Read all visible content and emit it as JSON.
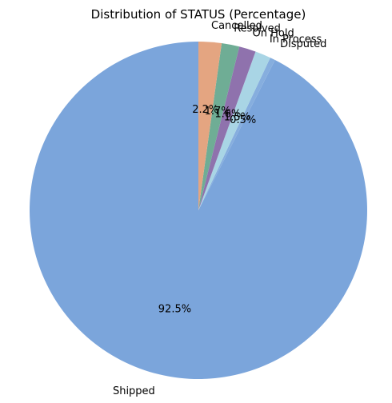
{
  "chart_data": {
    "type": "pie",
    "title": "Distribution of STATUS (Percentage)",
    "start_angle_deg": 90,
    "direction": "counterclockwise",
    "slices": [
      {
        "label": "Shipped",
        "value": 92.5,
        "pct_label": "92.5%",
        "color": "#7ba5db"
      },
      {
        "label": "Disputed",
        "value": 0.5,
        "pct_label": "0.5%",
        "color": "#86aede"
      },
      {
        "label": "In Process",
        "value": 1.5,
        "pct_label": "1.5%",
        "color": "#a9d5e5"
      },
      {
        "label": "On Hold",
        "value": 1.6,
        "pct_label": "1.6%",
        "color": "#8f72ad"
      },
      {
        "label": "Resolved",
        "value": 1.7,
        "pct_label": "1.7%",
        "color": "#6fad95"
      },
      {
        "label": "Cancelled",
        "value": 2.2,
        "pct_label": "2.2%",
        "color": "#e4a581"
      }
    ]
  }
}
